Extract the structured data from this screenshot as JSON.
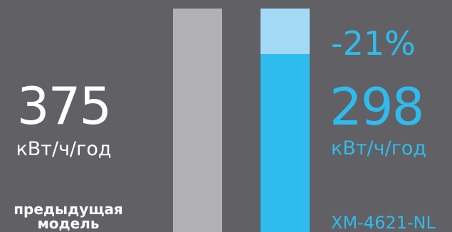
{
  "chart_data": {
    "type": "bar",
    "categories": [
      "предыдущая модель",
      "XM-4621-NL"
    ],
    "values": [
      375,
      298
    ],
    "unit": "кВт/ч/год",
    "reduction_label": "-21%",
    "ylim": [
      0,
      375
    ],
    "colors": {
      "previous": "#b1b1b4",
      "current": "#2ebcee",
      "saved": "#a3dbf7",
      "background": "#616064"
    }
  },
  "labels": {
    "previous_value": "375",
    "previous_unit": "кВт/ч/год",
    "previous_name": "предыдущая модель",
    "current_value": "298",
    "current_unit": "кВт/ч/год",
    "current_name": "XM-4621-NL",
    "reduction": "-21%"
  }
}
